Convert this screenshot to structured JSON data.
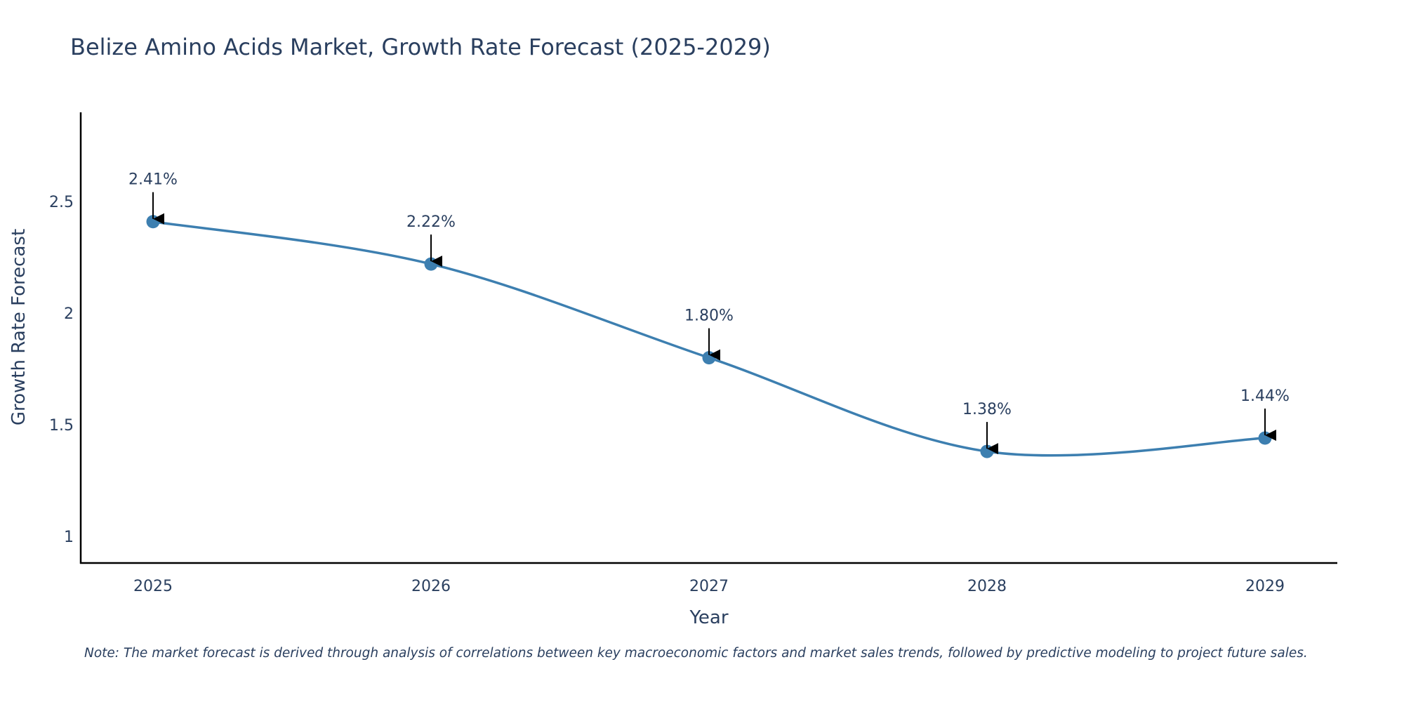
{
  "chart_data": {
    "type": "line",
    "title": "Belize Amino Acids Market, Growth Rate Forecast (2025-2029)",
    "xlabel": "Year",
    "ylabel": "Growth Rate Forecast",
    "categories": [
      "2025",
      "2026",
      "2027",
      "2028",
      "2029"
    ],
    "values": [
      2.41,
      2.22,
      1.8,
      1.38,
      1.44
    ],
    "data_labels": [
      "2.41%",
      "2.22%",
      "1.80%",
      "1.38%",
      "1.44%"
    ],
    "yticks": [
      1,
      1.5,
      2,
      2.5
    ],
    "ytick_labels": [
      "1",
      "1.5",
      "2",
      "2.5"
    ],
    "ylim": [
      0.88,
      2.9
    ],
    "grid": false,
    "line_color": "#3d7fb0",
    "marker_color": "#3d7fb0",
    "arrow_color": "#000000",
    "text_color": "#2a3f5f",
    "note": "Note: The market forecast is derived through analysis of correlations between key macroeconomic factors and market sales trends, followed by predictive modeling to project future sales."
  }
}
